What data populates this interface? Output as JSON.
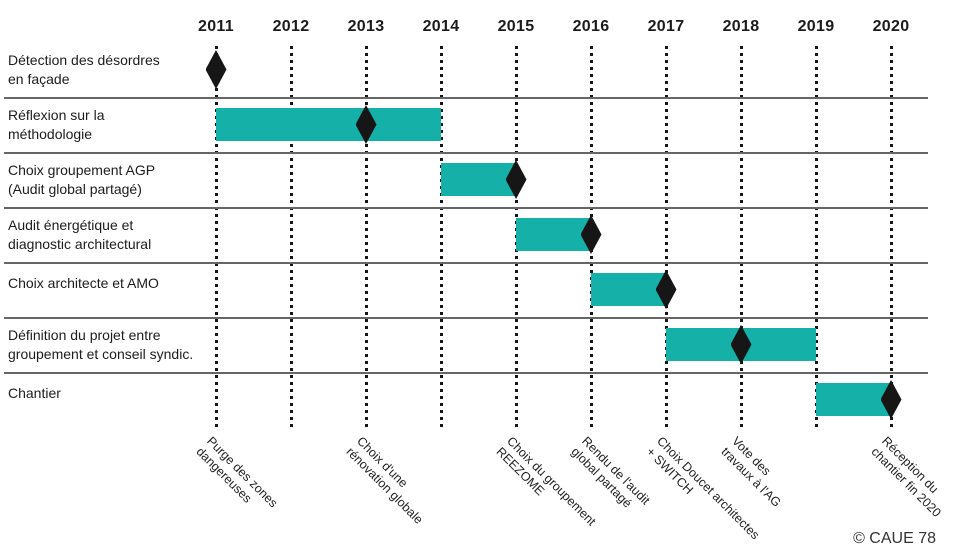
{
  "credit": "© CAUE 78",
  "colors": {
    "bar_teal": "#15b0a8",
    "diamond_black": "#161616",
    "grid_dot": "#161616",
    "separator_gray": "#666666",
    "text": "#1c1c1c"
  },
  "chart_data": {
    "type": "bar",
    "variant": "gantt-timeline",
    "title": "",
    "xlabel": "",
    "ylabel": "",
    "grid": "vertical-dotted-per-year",
    "legend": null,
    "x_ticks": [
      "2011",
      "2012",
      "2013",
      "2014",
      "2015",
      "2016",
      "2017",
      "2018",
      "2019",
      "2020"
    ],
    "x_range": [
      2011,
      2020
    ],
    "rows": [
      {
        "label": "Détection des désordres en façade",
        "label_lines": [
          "Détection des désordres",
          "en façade"
        ],
        "bar_start": null,
        "bar_end": null,
        "milestone": 2011
      },
      {
        "label": "Réflexion sur la méthodologie",
        "label_lines": [
          "Réflexion sur la",
          "méthodologie"
        ],
        "bar_start": 2011,
        "bar_end": 2014,
        "milestone": 2013
      },
      {
        "label": "Choix groupement AGP (Audit global partagé)",
        "label_lines": [
          "Choix groupement AGP",
          "(Audit global partagé)"
        ],
        "bar_start": 2014,
        "bar_end": 2015,
        "milestone": 2015
      },
      {
        "label": "Audit énergétique et diagnostic architectural",
        "label_lines": [
          "Audit énergétique et",
          "diagnostic architectural"
        ],
        "bar_start": 2015,
        "bar_end": 2016,
        "milestone": 2016
      },
      {
        "label": "Choix architecte et AMO",
        "label_lines": [
          "Choix architecte et AMO"
        ],
        "bar_start": 2016,
        "bar_end": 2017,
        "milestone": 2017
      },
      {
        "label": "Définition du projet entre groupement et conseil syndic.",
        "label_lines": [
          "Définition du projet entre",
          "groupement et conseil syndic."
        ],
        "bar_start": 2017,
        "bar_end": 2019,
        "milestone": 2018
      },
      {
        "label": "Chantier",
        "label_lines": [
          "Chantier"
        ],
        "bar_start": 2019,
        "bar_end": 2020,
        "milestone": 2020
      }
    ],
    "milestone_annotations": [
      {
        "year": 2011,
        "lines": [
          "Purge des zones",
          "dangereuses"
        ]
      },
      {
        "year": 2013,
        "lines": [
          "Choix d'une",
          "rénovation globale"
        ]
      },
      {
        "year": 2015,
        "lines": [
          "Choix du groupement",
          "REEZOME"
        ]
      },
      {
        "year": 2016,
        "lines": [
          "Rendu de l'audit",
          "global partagé"
        ]
      },
      {
        "year": 2017,
        "lines": [
          "Choix Doucet architectes",
          "+ SWITCH"
        ]
      },
      {
        "year": 2018,
        "lines": [
          "Vote des",
          "travaux à l'AG"
        ]
      },
      {
        "year": 2020,
        "lines": [
          "Réception du",
          "chantier fin 2020"
        ]
      }
    ]
  }
}
